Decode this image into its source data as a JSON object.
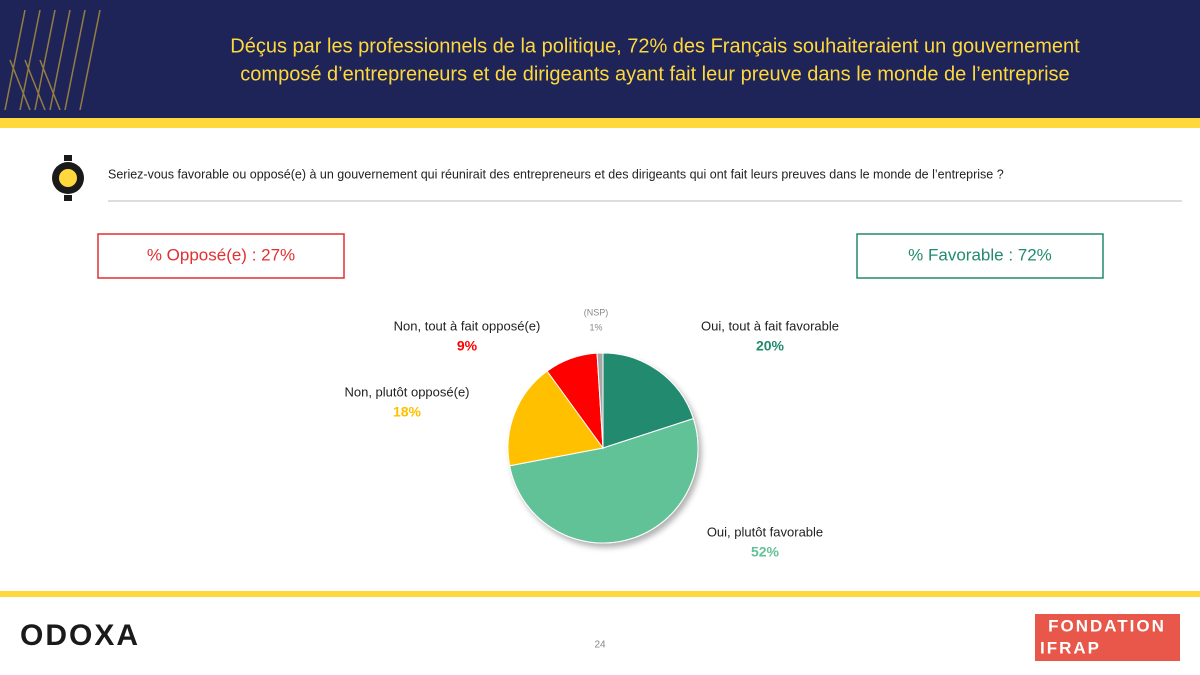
{
  "header": {
    "title_lines": [
      "Déçus par les professionnels de la politique, 72% des Français souhaiteraient un gouvernement",
      "composé d’entrepreneurs et de dirigeants ayant fait leur preuve dans le monde de l’entreprise"
    ]
  },
  "question": "Seriez-vous favorable ou opposé(e) à un gouvernement qui réunirait des entrepreneurs et des dirigeants qui ont fait leurs preuves dans le monde de l’entreprise ?",
  "summary": {
    "opposed": "% Opposé(e) : 27%",
    "favorable": "% Favorable : 72%"
  },
  "footer": {
    "logo_left": "ODOXA",
    "page": "24",
    "logo_right": [
      "FONDATION",
      "IFRAP"
    ]
  },
  "chart_data": {
    "type": "pie",
    "categories": [
      "Oui, tout à fait favorable",
      "Oui, plutôt favorable",
      "Non, plutôt opposé(e)",
      "Non, tout à fait opposé(e)",
      "(NSP)"
    ],
    "values": [
      20,
      52,
      18,
      9,
      1
    ],
    "value_labels": [
      "20%",
      "52%",
      "18%",
      "9%",
      "1%"
    ],
    "colors": [
      "#228a6e",
      "#62c297",
      "#ffc000",
      "#ff0000",
      "#a6a6a6"
    ]
  }
}
